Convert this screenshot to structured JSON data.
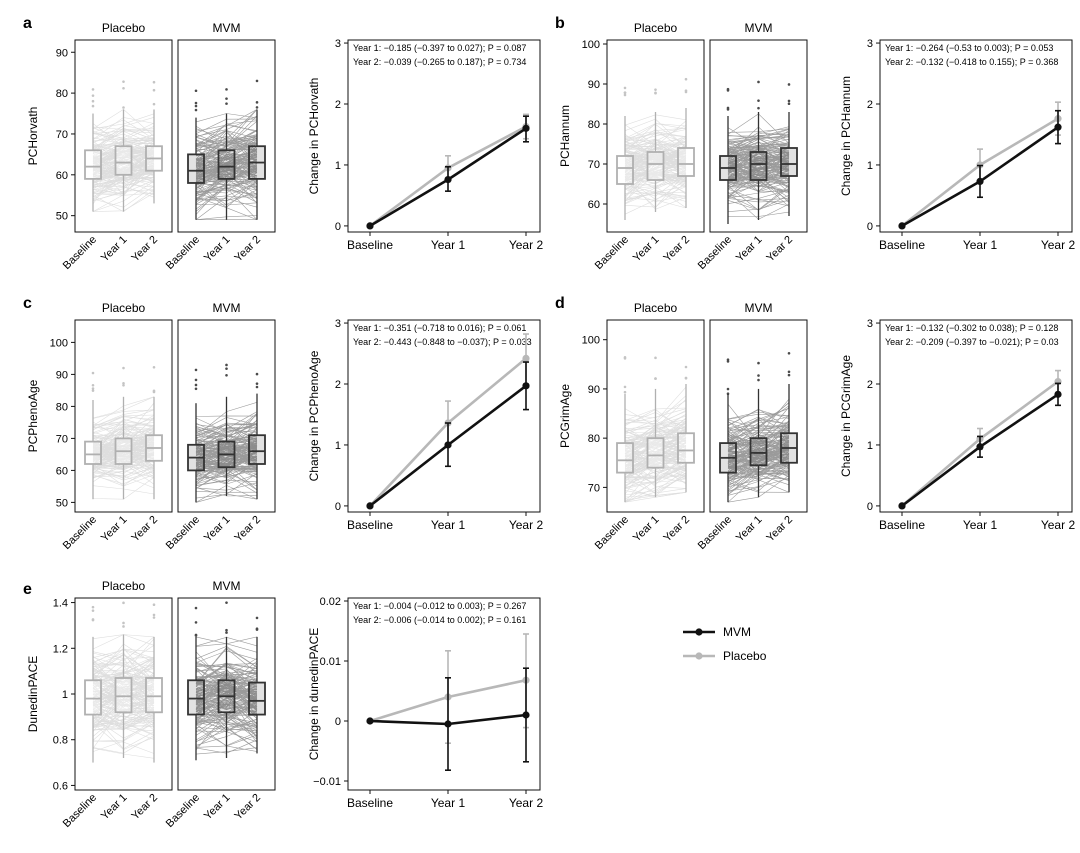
{
  "legend": {
    "mvm_label": "MVM",
    "placebo_label": "Placebo",
    "mvm_color": "#111111",
    "placebo_color": "#b8b8b8"
  },
  "colors": {
    "placebo_lines": "#c4c4c4",
    "mvm_lines": "#4a4a4a",
    "placebo_box": "#ffffff",
    "mvm_box": "#333333"
  },
  "chart_data": [
    {
      "panel": "a",
      "type": "box",
      "ylabel": "PCHorvath",
      "groups": [
        "Placebo",
        "MVM"
      ],
      "timepoints": [
        "Baseline",
        "Year 1",
        "Year 2"
      ],
      "yticks": [
        50,
        60,
        70,
        80,
        90
      ],
      "ylim": [
        46,
        93
      ],
      "placebo": [
        {
          "min": 51,
          "q1": 59,
          "median": 62,
          "q3": 66,
          "max": 75
        },
        {
          "min": 51,
          "q1": 60,
          "median": 63,
          "q3": 67,
          "max": 76
        },
        {
          "min": 53,
          "q1": 61,
          "median": 64,
          "q3": 67,
          "max": 76
        }
      ],
      "mvm": [
        {
          "min": 49,
          "q1": 58,
          "median": 61,
          "q3": 65,
          "max": 74
        },
        {
          "min": 49,
          "q1": 59,
          "median": 62,
          "q3": 66,
          "max": 75
        },
        {
          "min": 49,
          "q1": 59,
          "median": 63,
          "q3": 67,
          "max": 76
        }
      ]
    },
    {
      "panel": "a",
      "type": "line",
      "ylabel": "Change in PCHorvath",
      "categories": [
        "Baseline",
        "Year 1",
        "Year 2"
      ],
      "yticks": [
        0,
        1,
        2,
        3
      ],
      "ylim": [
        -0.1,
        3.05
      ],
      "annotations": [
        "Year 1: −0.185 (−0.397 to 0.027); P = 0.087",
        "Year 2: −0.039 (−0.265 to 0.187); P = 0.734"
      ],
      "series": [
        {
          "name": "MVM",
          "values": [
            0,
            0.76,
            1.6
          ],
          "lower": [
            0,
            0.57,
            1.38
          ],
          "upper": [
            0,
            0.97,
            1.8
          ]
        },
        {
          "name": "Placebo",
          "values": [
            0,
            0.95,
            1.63
          ],
          "lower": [
            0,
            0.75,
            1.43
          ],
          "upper": [
            0,
            1.15,
            1.83
          ]
        }
      ]
    },
    {
      "panel": "b",
      "type": "box",
      "ylabel": "PCHannum",
      "groups": [
        "Placebo",
        "MVM"
      ],
      "timepoints": [
        "Baseline",
        "Year 1",
        "Year 2"
      ],
      "yticks": [
        60,
        70,
        80,
        90,
        100
      ],
      "ylim": [
        53,
        101
      ],
      "placebo": [
        {
          "min": 56,
          "q1": 65,
          "median": 69,
          "q3": 72,
          "max": 82
        },
        {
          "min": 58,
          "q1": 66,
          "median": 70,
          "q3": 73,
          "max": 83
        },
        {
          "min": 59,
          "q1": 67,
          "median": 70,
          "q3": 74,
          "max": 84
        }
      ],
      "mvm": [
        {
          "min": 55,
          "q1": 66,
          "median": 69,
          "q3": 72,
          "max": 82
        },
        {
          "min": 56,
          "q1": 66,
          "median": 70,
          "q3": 73,
          "max": 83
        },
        {
          "min": 57,
          "q1": 67,
          "median": 70,
          "q3": 74,
          "max": 83
        }
      ]
    },
    {
      "panel": "b",
      "type": "line",
      "ylabel": "Change in PCHannum",
      "categories": [
        "Baseline",
        "Year 1",
        "Year 2"
      ],
      "yticks": [
        0,
        1,
        2,
        3
      ],
      "ylim": [
        -0.1,
        3.05
      ],
      "annotations": [
        "Year 1: −0.264 (−0.53 to 0.003); P = 0.053",
        "Year 2: −0.132 (−0.418 to 0.155); P = 0.368"
      ],
      "series": [
        {
          "name": "MVM",
          "values": [
            0,
            0.73,
            1.62
          ],
          "lower": [
            0,
            0.47,
            1.35
          ],
          "upper": [
            0,
            0.99,
            1.89
          ]
        },
        {
          "name": "Placebo",
          "values": [
            0,
            1.0,
            1.76
          ],
          "lower": [
            0,
            0.74,
            1.49
          ],
          "upper": [
            0,
            1.26,
            2.03
          ]
        }
      ]
    },
    {
      "panel": "c",
      "type": "box",
      "ylabel": "PCPhenoAge",
      "groups": [
        "Placebo",
        "MVM"
      ],
      "timepoints": [
        "Baseline",
        "Year 1",
        "Year 2"
      ],
      "yticks": [
        50,
        60,
        70,
        80,
        90,
        100
      ],
      "ylim": [
        47,
        107
      ],
      "placebo": [
        {
          "min": 51,
          "q1": 62,
          "median": 65,
          "q3": 69,
          "max": 82
        },
        {
          "min": 51,
          "q1": 62,
          "median": 66,
          "q3": 70,
          "max": 83
        },
        {
          "min": 51,
          "q1": 63,
          "median": 67,
          "q3": 71,
          "max": 83
        }
      ],
      "mvm": [
        {
          "min": 50,
          "q1": 60,
          "median": 64,
          "q3": 68,
          "max": 81
        },
        {
          "min": 52,
          "q1": 61,
          "median": 65,
          "q3": 69,
          "max": 83
        },
        {
          "min": 51,
          "q1": 62,
          "median": 66,
          "q3": 71,
          "max": 84
        }
      ]
    },
    {
      "panel": "c",
      "type": "line",
      "ylabel": "Change in PCPhenoAge",
      "categories": [
        "Baseline",
        "Year 1",
        "Year 2"
      ],
      "yticks": [
        0,
        1,
        2,
        3
      ],
      "ylim": [
        -0.1,
        3.05
      ],
      "annotations": [
        "Year 1: −0.351 (−0.718 to 0.016); P = 0.061",
        "Year 2: −0.443 (−0.848 to −0.037); P = 0.033"
      ],
      "series": [
        {
          "name": "MVM",
          "values": [
            0,
            1.0,
            1.97
          ],
          "lower": [
            0,
            0.65,
            1.58
          ],
          "upper": [
            0,
            1.36,
            2.36
          ]
        },
        {
          "name": "Placebo",
          "values": [
            0,
            1.36,
            2.42
          ],
          "lower": [
            0,
            0.98,
            2.0
          ],
          "upper": [
            0,
            1.72,
            2.82
          ]
        }
      ]
    },
    {
      "panel": "d",
      "type": "box",
      "ylabel": "PCGrimAge",
      "groups": [
        "Placebo",
        "MVM"
      ],
      "timepoints": [
        "Baseline",
        "Year 1",
        "Year 2"
      ],
      "yticks": [
        70,
        80,
        90,
        100
      ],
      "ylim": [
        65,
        104
      ],
      "placebo": [
        {
          "min": 67,
          "q1": 73,
          "median": 75.5,
          "q3": 79,
          "max": 89
        },
        {
          "min": 68,
          "q1": 74,
          "median": 76.5,
          "q3": 80,
          "max": 90
        },
        {
          "min": 69,
          "q1": 75,
          "median": 77.5,
          "q3": 81,
          "max": 91
        }
      ],
      "mvm": [
        {
          "min": 67,
          "q1": 73,
          "median": 76,
          "q3": 79,
          "max": 89
        },
        {
          "min": 68,
          "q1": 74.5,
          "median": 77,
          "q3": 80,
          "max": 90
        },
        {
          "min": 69,
          "q1": 75,
          "median": 78,
          "q3": 81,
          "max": 91
        }
      ]
    },
    {
      "panel": "d",
      "type": "line",
      "ylabel": "Change in PCGrimAge",
      "categories": [
        "Baseline",
        "Year 1",
        "Year 2"
      ],
      "yticks": [
        0,
        1,
        2,
        3
      ],
      "ylim": [
        -0.1,
        3.05
      ],
      "annotations": [
        "Year 1: −0.132 (−0.302 to 0.038); P = 0.128",
        "Year 2: −0.209 (−0.397 to −0.021); P = 0.03"
      ],
      "series": [
        {
          "name": "MVM",
          "values": [
            0,
            0.97,
            1.83
          ],
          "lower": [
            0,
            0.8,
            1.65
          ],
          "upper": [
            0,
            1.14,
            2.01
          ]
        },
        {
          "name": "Placebo",
          "values": [
            0,
            1.1,
            2.04
          ],
          "lower": [
            0,
            0.93,
            1.86
          ],
          "upper": [
            0,
            1.27,
            2.22
          ]
        }
      ]
    },
    {
      "panel": "e",
      "type": "box",
      "ylabel": "DunedinPACE",
      "groups": [
        "Placebo",
        "MVM"
      ],
      "timepoints": [
        "Baseline",
        "Year 1",
        "Year 2"
      ],
      "yticks": [
        0.6,
        0.8,
        1.0,
        1.2,
        1.4
      ],
      "ylim": [
        0.58,
        1.42
      ],
      "placebo": [
        {
          "min": 0.7,
          "q1": 0.91,
          "median": 0.98,
          "q3": 1.06,
          "max": 1.25
        },
        {
          "min": 0.72,
          "q1": 0.92,
          "median": 0.99,
          "q3": 1.07,
          "max": 1.26
        },
        {
          "min": 0.7,
          "q1": 0.92,
          "median": 0.99,
          "q3": 1.07,
          "max": 1.25
        }
      ],
      "mvm": [
        {
          "min": 0.71,
          "q1": 0.91,
          "median": 0.98,
          "q3": 1.06,
          "max": 1.25
        },
        {
          "min": 0.72,
          "q1": 0.92,
          "median": 0.99,
          "q3": 1.06,
          "max": 1.25
        },
        {
          "min": 0.74,
          "q1": 0.91,
          "median": 0.97,
          "q3": 1.05,
          "max": 1.25
        }
      ]
    },
    {
      "panel": "e",
      "type": "line",
      "ylabel": "Change in dunedinPACE",
      "categories": [
        "Baseline",
        "Year 1",
        "Year 2"
      ],
      "yticks": [
        -0.01,
        0,
        0.01,
        0.02
      ],
      "yticklabels": [
        "−0.01",
        "0",
        "0.01",
        "0.02"
      ],
      "ylim": [
        -0.0115,
        0.0205
      ],
      "annotations": [
        "Year 1: −0.004 (−0.012 to 0.003); P = 0.267",
        "Year 2: −0.006 (−0.014 to 0.002); P = 0.161"
      ],
      "series": [
        {
          "name": "MVM",
          "values": [
            0,
            -0.0005,
            0.001
          ],
          "lower": [
            0,
            -0.0082,
            -0.0068
          ],
          "upper": [
            0,
            0.0072,
            0.0088
          ]
        },
        {
          "name": "Placebo",
          "values": [
            0,
            0.004,
            0.0068
          ],
          "lower": [
            0,
            -0.0037,
            -0.0011
          ],
          "upper": [
            0,
            0.0117,
            0.0145
          ]
        }
      ]
    }
  ]
}
